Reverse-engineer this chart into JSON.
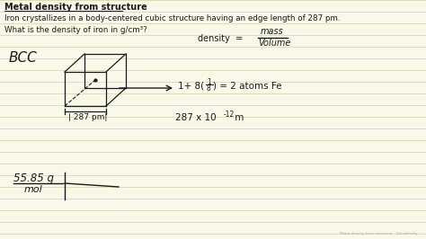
{
  "bg_color": "#faf8e8",
  "line_color": "#d4d0a8",
  "title": "Metal density from structure",
  "line1": "Iron crystallizes in a body-centered cubic structure having an edge length of 287 pm.",
  "line2": "What is the density of iron in g/cm³?",
  "bcc_label": "BCC",
  "density_lhs": "density  =",
  "mass_text": "mass",
  "volume_text": "Volume",
  "atoms_eq": "1+ 8(¹⁄₈) = 2 atoms Fe",
  "edge_label": "| 287 pm|",
  "edge_eq": "287 x 10⁻¹² m",
  "fraction_num": "55.85 g",
  "fraction_den": "mol",
  "text_color": "#1a1a1a",
  "watermark": "Metal density from structure - DerrieFredy",
  "figsize": [
    4.74,
    2.66
  ],
  "dpi": 100
}
